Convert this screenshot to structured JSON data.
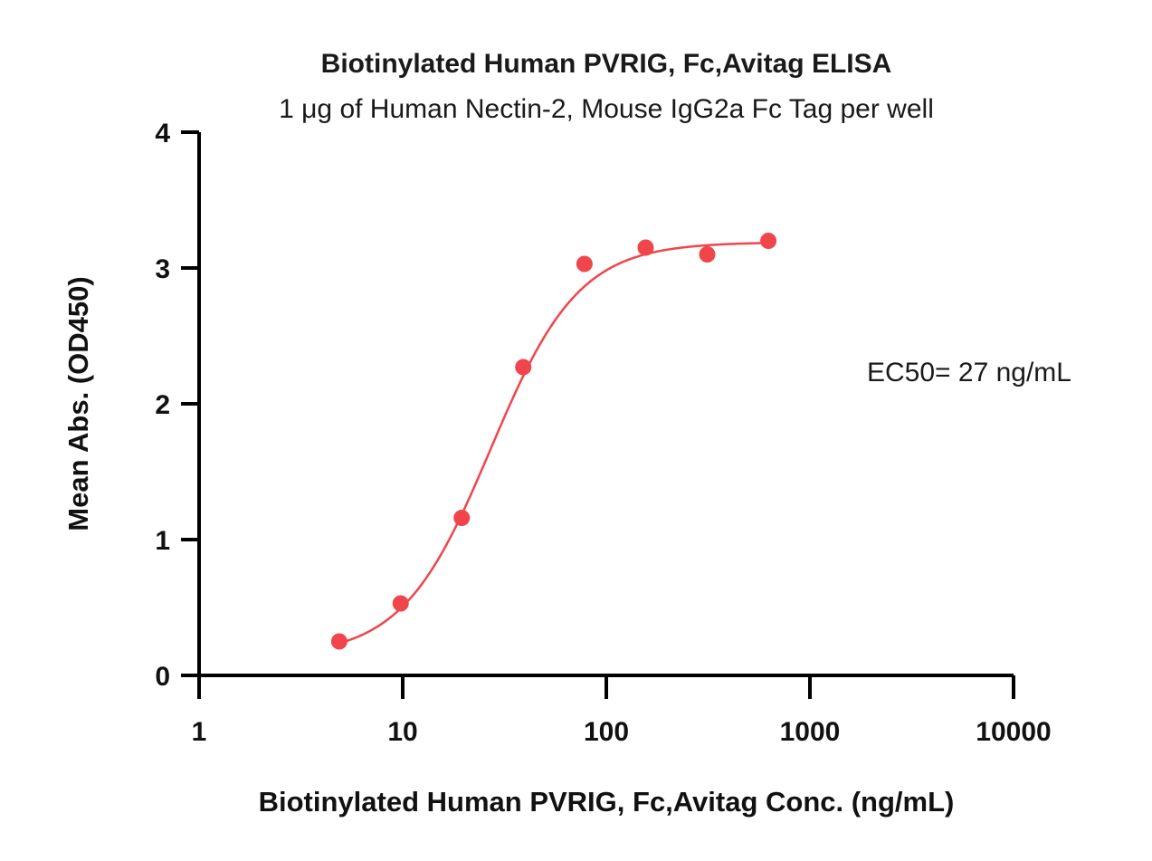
{
  "chart_data": {
    "type": "scatter",
    "title": "Biotinylated Human PVRIG, Fc,Avitag ELISA",
    "subtitle": "1 μg of Human Nectin-2, Mouse IgG2a Fc Tag per well",
    "xlabel": "Biotinylated Human PVRIG, Fc,Avitag Conc. (ng/mL)",
    "ylabel": "Mean Abs. (OD450)",
    "x_scale": "log",
    "xlim": [
      1,
      10000
    ],
    "ylim": [
      0,
      4
    ],
    "x_ticks": [
      "1",
      "10",
      "100",
      "1000",
      "10000"
    ],
    "y_ticks": [
      "0",
      "1",
      "2",
      "3",
      "4"
    ],
    "grid": false,
    "series": [
      {
        "color": "#f0454b",
        "x": [
          4.88,
          9.77,
          19.5,
          39.1,
          78.1,
          156,
          313,
          625
        ],
        "y": [
          0.25,
          0.53,
          1.16,
          2.27,
          3.03,
          3.15,
          3.1,
          3.2
        ]
      }
    ],
    "fit_curve": {
      "model": "4PL",
      "bottom": 0.14,
      "top": 3.19,
      "ec50": 27,
      "hill": 2.0
    },
    "annotation": "EC50= 27 ng/mL"
  }
}
